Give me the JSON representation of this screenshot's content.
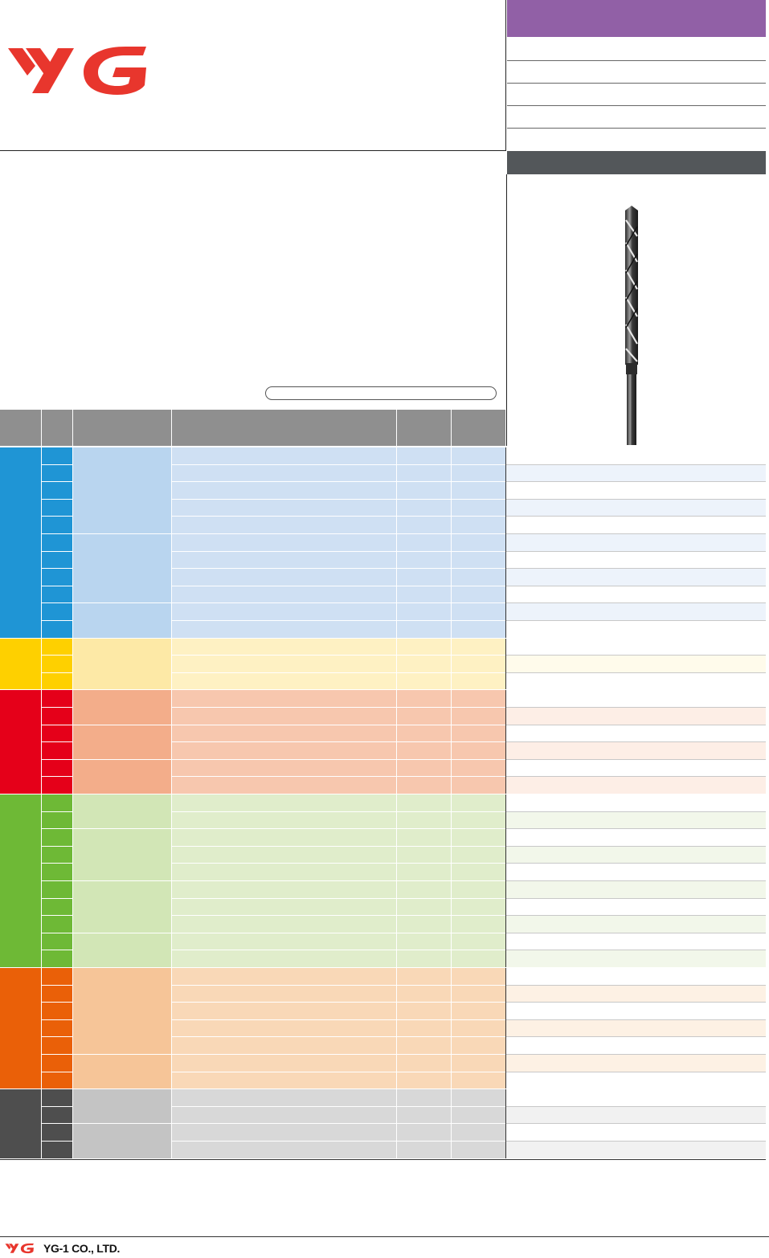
{
  "footer": {
    "company": "YG-1 CO., LTD."
  },
  "colors": {
    "brand_red": "#e8362d",
    "header_purple": "#9160a6",
    "panel_grey": "#53575a",
    "table_header": "#8f8f8f"
  },
  "icons": {
    "logo": "yg1-logo-icon",
    "product": "twist-drill-icon"
  }
}
